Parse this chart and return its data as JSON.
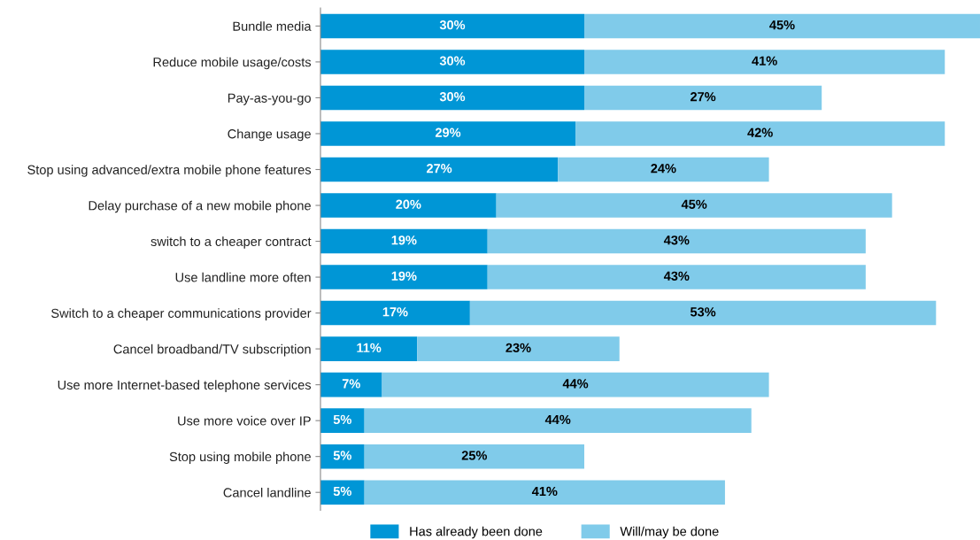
{
  "chart_data": {
    "type": "bar",
    "orientation": "horizontal",
    "stacked": true,
    "legend": "bottom",
    "grid": false,
    "categories": [
      "Bundle media",
      "Reduce mobile usage/costs",
      "Pay-as-you-go",
      "Change usage",
      "Stop using advanced/extra mobile phone features",
      "Delay purchase of a new mobile phone",
      "switch to a cheaper contract",
      "Use landline more often",
      "Switch to a cheaper communications provider",
      "Cancel broadband/TV subscription",
      "Use more Internet-based telephone services",
      "Use more voice over IP",
      "Stop using mobile phone",
      "Cancel landline"
    ],
    "series": [
      {
        "name": "Has already been done",
        "color": "#0096d6",
        "values": [
          30,
          30,
          30,
          29,
          27,
          20,
          19,
          19,
          17,
          11,
          7,
          5,
          5,
          5
        ],
        "value_labels": [
          "30%",
          "30%",
          "30%",
          "29%",
          "27%",
          "20%",
          "19%",
          "19%",
          "17%",
          "11%",
          "7%",
          "5%",
          "5%",
          "5%"
        ]
      },
      {
        "name": "Will/may be done",
        "color": "#80cbea",
        "values": [
          45,
          41,
          27,
          42,
          24,
          45,
          43,
          43,
          53,
          23,
          44,
          44,
          25,
          41
        ],
        "value_labels": [
          "45%",
          "41%",
          "27%",
          "42%",
          "24%",
          "45%",
          "43%",
          "43%",
          "53%",
          "23%",
          "44%",
          "44%",
          "25%",
          "41%"
        ]
      }
    ]
  }
}
